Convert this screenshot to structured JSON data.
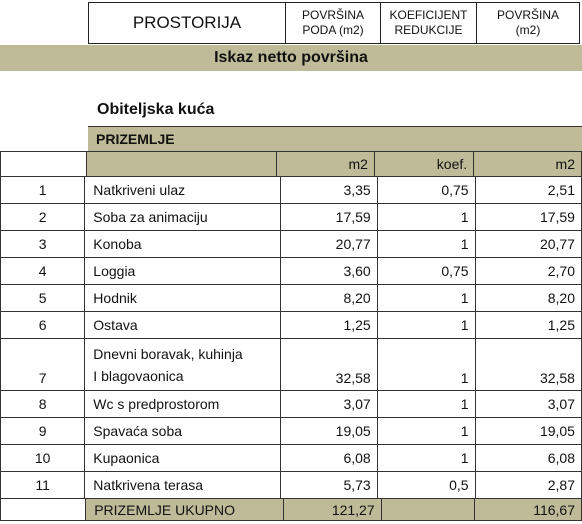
{
  "header": {
    "col_room": "PROSTORIJA",
    "col_floor_area": [
      "POVRŠINA",
      "PODA (m2)"
    ],
    "col_coef": [
      "KOEFICIJENT",
      "REDUKCIJE"
    ],
    "col_area": [
      "POVRŠINA",
      "(m2)"
    ]
  },
  "section_title": "Iskaz netto površina",
  "building_title": "Obiteljska kuća",
  "floor_title": "PRIZEMLJE",
  "units": {
    "area": "m2",
    "coef": "koef.",
    "net": "m2"
  },
  "rows": [
    {
      "no": "1",
      "name": [
        "Natkriveni ulaz"
      ],
      "area": "3,35",
      "coef": "0,75",
      "net": "2,51"
    },
    {
      "no": "2",
      "name": [
        "Soba za animaciju"
      ],
      "area": "17,59",
      "coef": "1",
      "net": "17,59"
    },
    {
      "no": "3",
      "name": [
        "Konoba"
      ],
      "area": "20,77",
      "coef": "1",
      "net": "20,77"
    },
    {
      "no": "4",
      "name": [
        "Loggia"
      ],
      "area": "3,60",
      "coef": "0,75",
      "net": "2,70"
    },
    {
      "no": "5",
      "name": [
        "Hodnik"
      ],
      "area": "8,20",
      "coef": "1",
      "net": "8,20"
    },
    {
      "no": "6",
      "name": [
        "Ostava"
      ],
      "area": "1,25",
      "coef": "1",
      "net": "1,25"
    },
    {
      "no": "7",
      "name": [
        "Dnevni boravak, kuhinja",
        "I blagovaonica"
      ],
      "area": "32,58",
      "coef": "1",
      "net": "32,58"
    },
    {
      "no": "8",
      "name": [
        "Wc s predprostorom"
      ],
      "area": "3,07",
      "coef": "1",
      "net": "3,07"
    },
    {
      "no": "9",
      "name": [
        "Spavaća soba"
      ],
      "area": "19,05",
      "coef": "1",
      "net": "19,05"
    },
    {
      "no": "10",
      "name": [
        "Kupaonica"
      ],
      "area": "6,08",
      "coef": "1",
      "net": "6,08"
    },
    {
      "no": "11",
      "name": [
        "Natkrivena terasa"
      ],
      "area": "5,73",
      "coef": "0,5",
      "net": "2,87"
    }
  ],
  "total": {
    "label": "PRIZEMLJE UKUPNO",
    "area": "121,27",
    "net": "116,67"
  }
}
